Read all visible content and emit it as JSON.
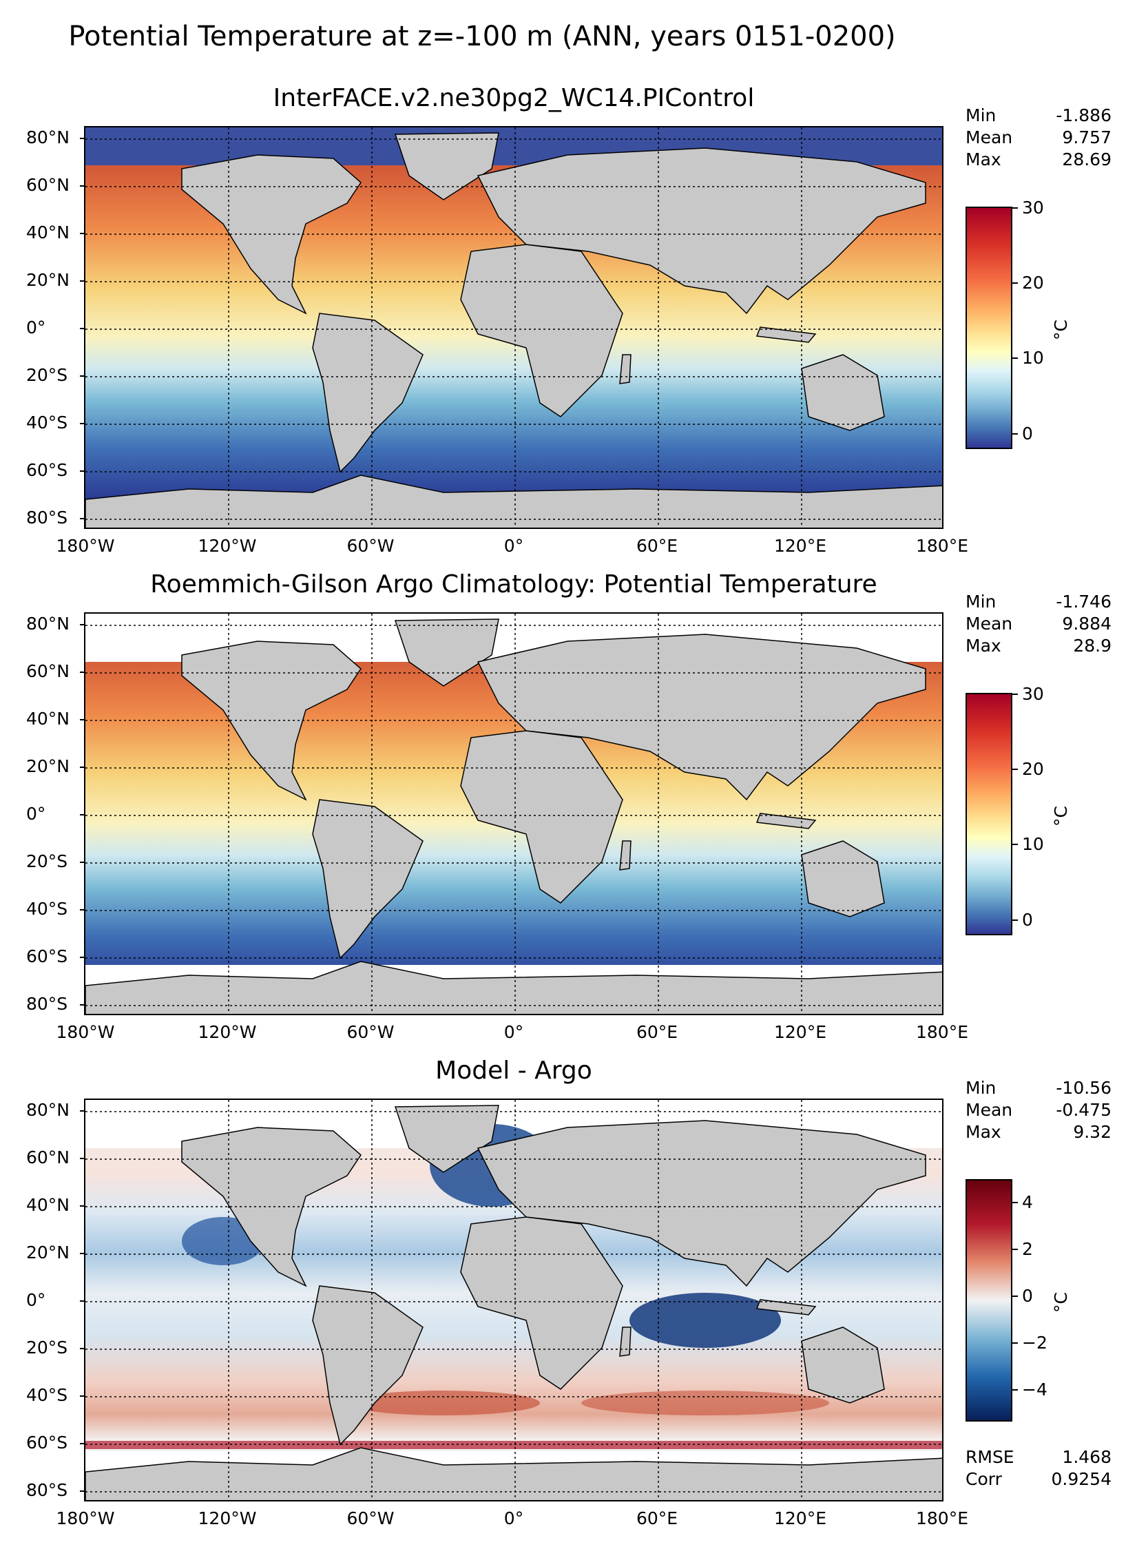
{
  "figure": {
    "title": "Potential Temperature at z=-100 m (ANN, years 0151-0200)"
  },
  "axes": {
    "y_ticks": [
      "80°N",
      "60°N",
      "40°N",
      "20°N",
      "0°",
      "20°S",
      "40°S",
      "60°S",
      "80°S"
    ],
    "x_ticks": [
      "180°W",
      "120°W",
      "60°W",
      "0°",
      "60°E",
      "120°E",
      "180°E"
    ]
  },
  "panels": [
    {
      "title": "InterFACE.v2.ne30pg2_WC14.PIControl",
      "stats": [
        {
          "label": "Min",
          "value": "-1.886"
        },
        {
          "label": "Mean",
          "value": "9.757"
        },
        {
          "label": "Max",
          "value": "28.69"
        }
      ],
      "colorbar": {
        "ticks": [
          "30",
          "20",
          "10",
          "0"
        ],
        "label": "°C"
      }
    },
    {
      "title": "Roemmich-Gilson Argo Climatology: Potential Temperature",
      "stats": [
        {
          "label": "Min",
          "value": "-1.746"
        },
        {
          "label": "Mean",
          "value": "9.884"
        },
        {
          "label": "Max",
          "value": "28.9"
        }
      ],
      "colorbar": {
        "ticks": [
          "30",
          "20",
          "10",
          "0"
        ],
        "label": "°C"
      }
    },
    {
      "title": "Model - Argo",
      "stats": [
        {
          "label": "Min",
          "value": "-10.56"
        },
        {
          "label": "Mean",
          "value": "-0.475"
        },
        {
          "label": "Max",
          "value": "9.32"
        }
      ],
      "colorbar": {
        "ticks": [
          "4",
          "2",
          "0",
          "−2",
          "−4"
        ],
        "label": "°C"
      },
      "metrics": [
        {
          "label": "RMSE",
          "value": "1.468"
        },
        {
          "label": "Corr",
          "value": "0.9254"
        }
      ]
    }
  ],
  "colors": {
    "land": "#c8c8c8",
    "seq_cold": "#313695",
    "seq_hot": "#a50026",
    "div_neg": "#08205a",
    "div_pos": "#67000d"
  }
}
